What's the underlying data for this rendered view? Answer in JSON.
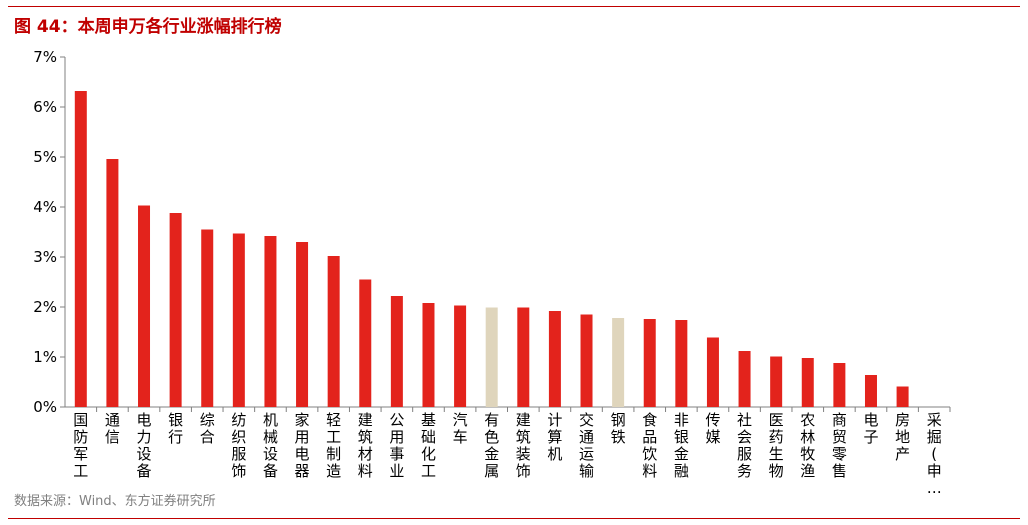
{
  "header": {
    "title": "图 44：本周申万各行业涨幅排行榜"
  },
  "footer": {
    "source": "数据来源：Wind、东方证券研究所"
  },
  "colors": {
    "accent": "#c00000",
    "bar": "#e3231c",
    "highlight": "#dfd5bc",
    "axis": "#808080",
    "text": "#000000"
  },
  "chart_data": {
    "type": "bar",
    "title": "",
    "xlabel": "",
    "ylabel": "",
    "ylim": [
      0,
      7
    ],
    "yticks": [
      0,
      1,
      2,
      3,
      4,
      5,
      6,
      7
    ],
    "ytick_labels": [
      "0%",
      "1%",
      "2%",
      "3%",
      "4%",
      "5%",
      "6%",
      "7%"
    ],
    "grid": false,
    "categories": [
      "国防军工",
      "通信",
      "电力设备",
      "银行",
      "综合",
      "纺织服饰",
      "机械设备",
      "家用电器",
      "轻工制造",
      "建筑材料",
      "公用事业",
      "基础化工",
      "汽车",
      "有色金属",
      "建筑装饰",
      "计算机",
      "交通运输",
      "钢铁",
      "食品饮料",
      "非银金融",
      "传媒",
      "社会服务",
      "医药生物",
      "农林牧渔",
      "商贸零售",
      "电子",
      "房地产",
      "采掘(申…"
    ],
    "values": [
      6.32,
      4.96,
      4.03,
      3.88,
      3.55,
      3.47,
      3.42,
      3.3,
      3.02,
      2.55,
      2.22,
      2.08,
      2.03,
      1.99,
      1.99,
      1.92,
      1.85,
      1.78,
      1.76,
      1.74,
      1.39,
      1.12,
      1.01,
      0.98,
      0.88,
      0.64,
      0.41,
      0
    ],
    "highlight": [
      "有色金属",
      "钢铁"
    ]
  }
}
